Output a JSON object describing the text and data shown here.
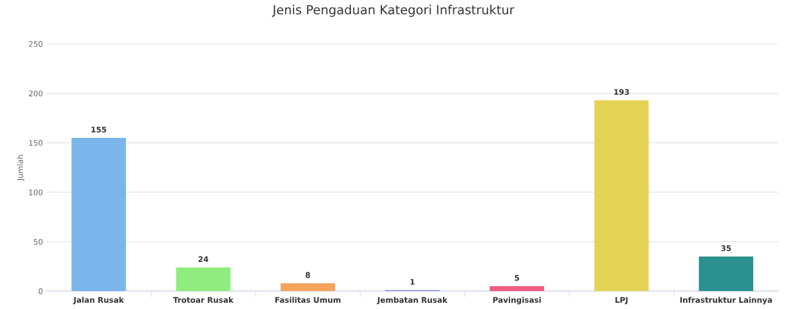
{
  "chart_data": {
    "type": "bar",
    "title": "Jenis Pengaduan Kategori Infrastruktur",
    "ylabel": "Jumlah",
    "categories": [
      "Jalan Rusak",
      "Trotoar Rusak",
      "Fasilitas Umum",
      "Jembatan Rusak",
      "Pavingisasi",
      "LPJ",
      "Infrastruktur Lainnya"
    ],
    "values": [
      155,
      24,
      8,
      1,
      5,
      193,
      35
    ],
    "colors": [
      "#7cb5ec",
      "#90ed7d",
      "#f7a35c",
      "#8085e9",
      "#f15c80",
      "#e4d354",
      "#2b908f"
    ],
    "ylim": [
      0,
      250
    ],
    "yticks": [
      0,
      50,
      100,
      150,
      200,
      250
    ],
    "grid": "y",
    "data_labels": true
  }
}
